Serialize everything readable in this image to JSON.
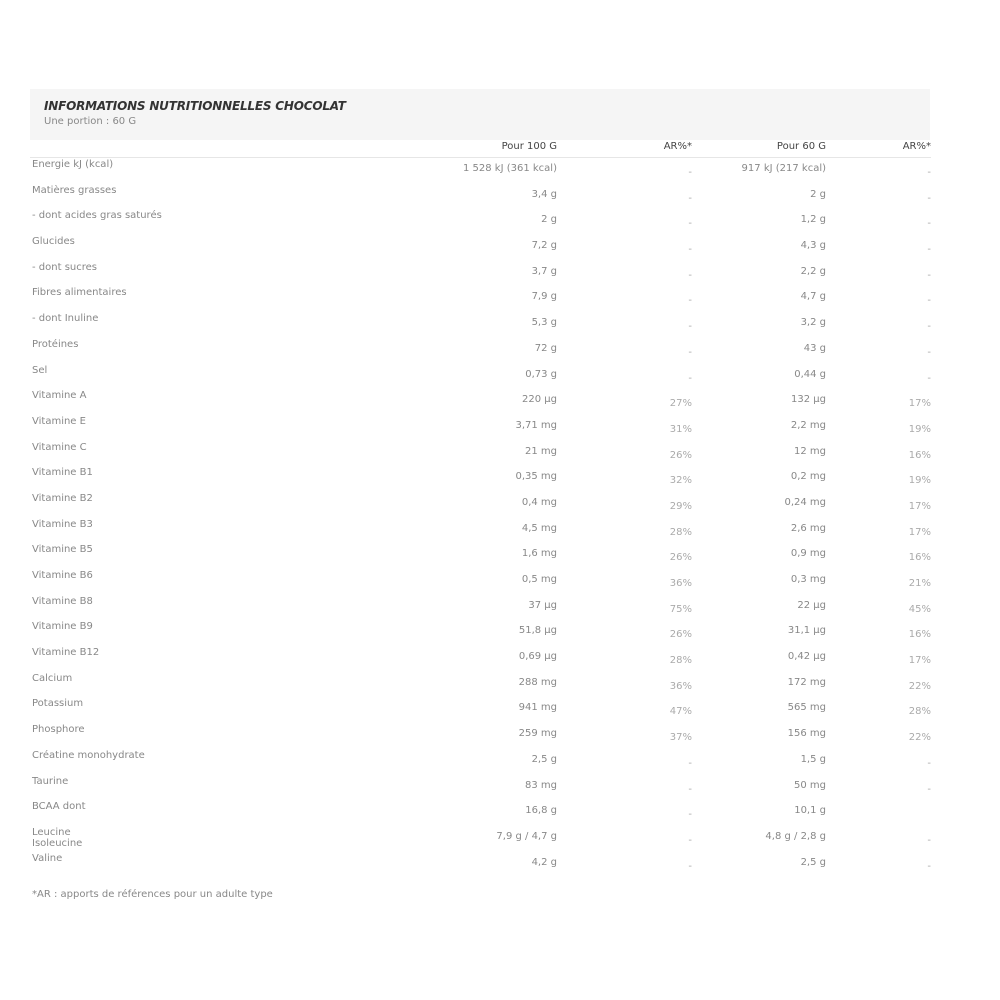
{
  "header": {
    "title": "INFORMATIONS NUTRITIONNELLES CHOCOLAT",
    "subtitle": "Une portion : 60 G"
  },
  "columns": [
    "Pour 100 G",
    "AR%*",
    "Pour 60 G",
    "AR%*"
  ],
  "rows": [
    [
      "Energie kJ (kcal)",
      "1 528 kJ (361 kcal)",
      "-",
      "917 kJ (217 kcal)",
      "-"
    ],
    [
      "Matières grasses",
      "3,4 g",
      "-",
      "2 g",
      "-"
    ],
    [
      "- dont acides gras saturés",
      "2 g",
      "-",
      "1,2 g",
      "-"
    ],
    [
      "Glucides",
      "7,2 g",
      "-",
      "4,3 g",
      "-"
    ],
    [
      "- dont sucres",
      "3,7 g",
      "-",
      "2,2 g",
      "-"
    ],
    [
      "Fibres alimentaires",
      "7,9 g",
      "-",
      "4,7 g",
      "-"
    ],
    [
      "- dont Inuline",
      "5,3 g",
      "-",
      "3,2 g",
      "-"
    ],
    [
      "Protéines",
      "72 g",
      "-",
      "43 g",
      "-"
    ],
    [
      "Sel",
      "0,73 g",
      "-",
      "0,44 g",
      "-"
    ],
    [
      "Vitamine A",
      "220 µg",
      "27%",
      "132 µg",
      "17%"
    ],
    [
      "Vitamine E",
      "3,71 mg",
      "31%",
      "2,2 mg",
      "19%"
    ],
    [
      "Vitamine C",
      "21 mg",
      "26%",
      "12 mg",
      "16%"
    ],
    [
      "Vitamine B1",
      "0,35 mg",
      "32%",
      "0,2 mg",
      "19%"
    ],
    [
      "Vitamine B2",
      "0,4 mg",
      "29%",
      "0,24 mg",
      "17%"
    ],
    [
      "Vitamine B3",
      "4,5 mg",
      "28%",
      "2,6 mg",
      "17%"
    ],
    [
      "Vitamine B5",
      "1,6 mg",
      "26%",
      "0,9 mg",
      "16%"
    ],
    [
      "Vitamine B6",
      "0,5 mg",
      "36%",
      "0,3 mg",
      "21%"
    ],
    [
      "Vitamine B8",
      "37 µg",
      "75%",
      "22 µg",
      "45%"
    ],
    [
      "Vitamine B9",
      "51,8 µg",
      "26%",
      "31,1 µg",
      "16%"
    ],
    [
      "Vitamine B12",
      "0,69 µg",
      "28%",
      "0,42 µg",
      "17%"
    ],
    [
      "Calcium",
      "288 mg",
      "36%",
      "172 mg",
      "22%"
    ],
    [
      "Potassium",
      "941 mg",
      "47%",
      "565 mg",
      "28%"
    ],
    [
      "Phosphore",
      "259 mg",
      "37%",
      "156 mg",
      "22%"
    ],
    [
      "Créatine monohydrate",
      "2,5 g",
      "-",
      "1,5 g",
      "-"
    ],
    [
      "Taurine",
      "83 mg",
      "-",
      "50 mg",
      "-"
    ],
    [
      "BCAA dont",
      "16,8 g",
      "-",
      "10,1 g",
      ""
    ],
    [
      "Leucine\nIsoleucine",
      "7,9 g / 4,7 g",
      "-",
      "4,8 g / 2,8 g",
      "-"
    ],
    [
      "Valine",
      "4,2 g",
      "-",
      "2,5 g",
      "-"
    ]
  ],
  "footnote": "*AR : apports de références pour un adulte type"
}
